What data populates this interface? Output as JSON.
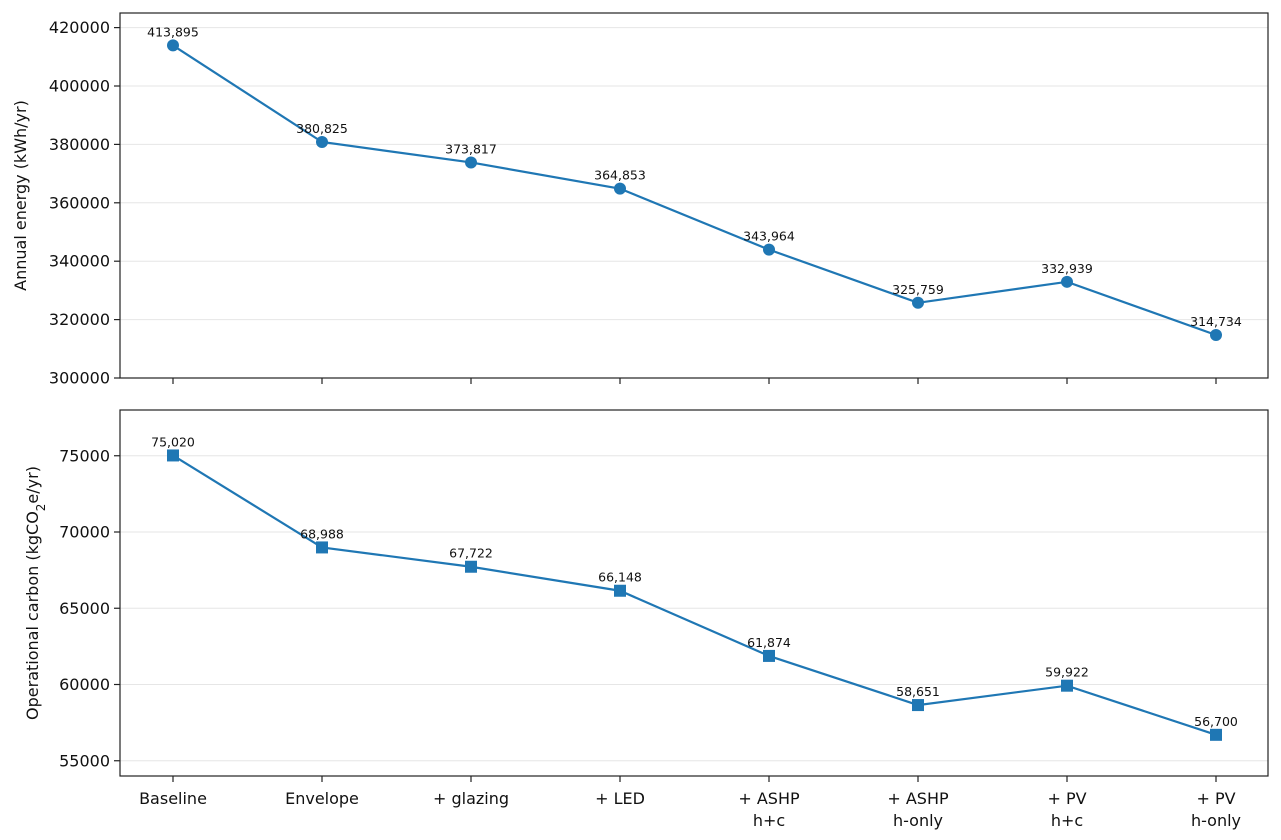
{
  "chart_data": [
    {
      "type": "line",
      "categories": [
        "Baseline",
        "Envelope",
        "+ glazing",
        "+ LED",
        "+ ASHP\nh+c",
        "+ ASHP\nh-only",
        "+ PV\nh+c",
        "+ PV\nh-only"
      ],
      "ylabel": "Annual energy (kWh/yr)",
      "ylim": [
        300000,
        425000
      ],
      "yticks": [
        300000,
        320000,
        340000,
        360000,
        380000,
        400000,
        420000
      ],
      "ytick_labels": [
        "300000",
        "320000",
        "340000",
        "360000",
        "380000",
        "400000",
        "420000"
      ],
      "series": [
        {
          "marker": "circle",
          "color": "#1f77b4",
          "values": [
            413895,
            380825,
            373817,
            364853,
            343964,
            325759,
            332939,
            314734
          ],
          "data_labels": [
            "413,895",
            "380,825",
            "373,817",
            "364,853",
            "343,964",
            "325,759",
            "332,939",
            "314,734"
          ]
        }
      ],
      "grid": "horizontal"
    },
    {
      "type": "line",
      "categories": [
        "Baseline",
        "Envelope",
        "+ glazing",
        "+ LED",
        "+ ASHP\nh+c",
        "+ ASHP\nh-only",
        "+ PV\nh+c",
        "+ PV\nh-only"
      ],
      "ylabel_prefix": "Operational carbon (kgCO",
      "ylabel_sub": "2",
      "ylabel_suffix": "e/yr)",
      "ylim": [
        54000,
        78000
      ],
      "yticks": [
        55000,
        60000,
        65000,
        70000,
        75000
      ],
      "ytick_labels": [
        "55000",
        "60000",
        "65000",
        "70000",
        "75000"
      ],
      "series": [
        {
          "marker": "square",
          "color": "#1f77b4",
          "values": [
            75020,
            68988,
            67722,
            66148,
            61874,
            58651,
            59922,
            56700
          ],
          "data_labels": [
            "75,020",
            "68,988",
            "67,722",
            "66,148",
            "61,874",
            "58,651",
            "59,922",
            "56,700"
          ]
        }
      ],
      "grid": "horizontal"
    }
  ]
}
